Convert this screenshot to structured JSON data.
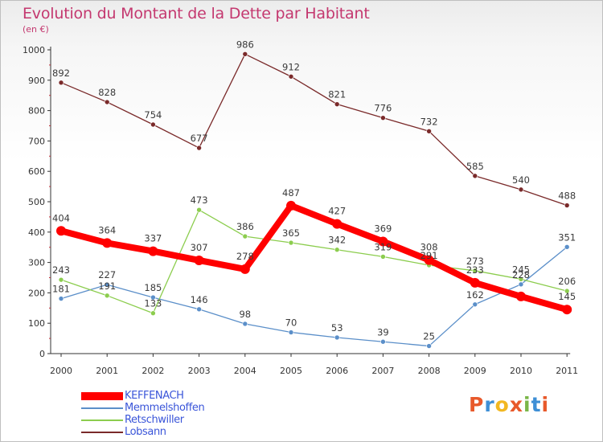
{
  "header": {
    "title": "Evolution du Montant de la Dette par Habitant",
    "subtitle": "(en €)"
  },
  "branding": {
    "logo_text": "Proxiti",
    "logo_colors": [
      "#e8592b",
      "#3e8fd6",
      "#f2b822",
      "#e8592b",
      "#7ab648",
      "#3e8fd6",
      "#e8592b"
    ]
  },
  "chart_data": {
    "type": "line",
    "title": "Evolution du Montant de la Dette par Habitant",
    "subtitle": "(en €)",
    "xlabel": "",
    "ylabel": "",
    "x": [
      "2000",
      "2001",
      "2002",
      "2003",
      "2004",
      "2005",
      "2006",
      "2007",
      "2008",
      "2009",
      "2010",
      "2011"
    ],
    "ylim": [
      0,
      1000
    ],
    "yticks": [
      "0",
      "100",
      "200",
      "300",
      "400",
      "500",
      "600",
      "700",
      "800",
      "900",
      "1000"
    ],
    "grid": false,
    "legend_position": "bottom-left",
    "series": [
      {
        "name": "KEFFENACH",
        "color": "#ff0000",
        "emphasis": true,
        "values": [
          404,
          364,
          337,
          307,
          278,
          487,
          427,
          369,
          308,
          233,
          188,
          145
        ],
        "labels": [
          "404",
          "364",
          "337",
          "307",
          "278",
          "487",
          "427",
          "369",
          "308",
          "233",
          "",
          "145"
        ]
      },
      {
        "name": "Memmelshoffen",
        "color": "#5b8fc9",
        "emphasis": false,
        "values": [
          181,
          227,
          185,
          146,
          98,
          70,
          53,
          39,
          25,
          162,
          228,
          351
        ],
        "labels": [
          "181",
          "227",
          "185",
          "146",
          "98",
          "70",
          "53",
          "39",
          "25",
          "162",
          "228",
          "351"
        ]
      },
      {
        "name": "Retschwiller",
        "color": "#8ccd4e",
        "emphasis": false,
        "values": [
          243,
          191,
          133,
          473,
          386,
          365,
          342,
          319,
          291,
          273,
          245,
          206
        ],
        "labels": [
          "243",
          "191",
          "133",
          "473",
          "386",
          "365",
          "342",
          "319",
          "291",
          "273",
          "245",
          "206"
        ]
      },
      {
        "name": "Lobsann",
        "color": "#7a2a2a",
        "emphasis": false,
        "values": [
          892,
          828,
          754,
          677,
          986,
          912,
          821,
          776,
          732,
          585,
          540,
          488
        ],
        "labels": [
          "892",
          "828",
          "754",
          "677",
          "986",
          "912",
          "821",
          "776",
          "732",
          "585",
          "540",
          "488"
        ]
      }
    ]
  }
}
